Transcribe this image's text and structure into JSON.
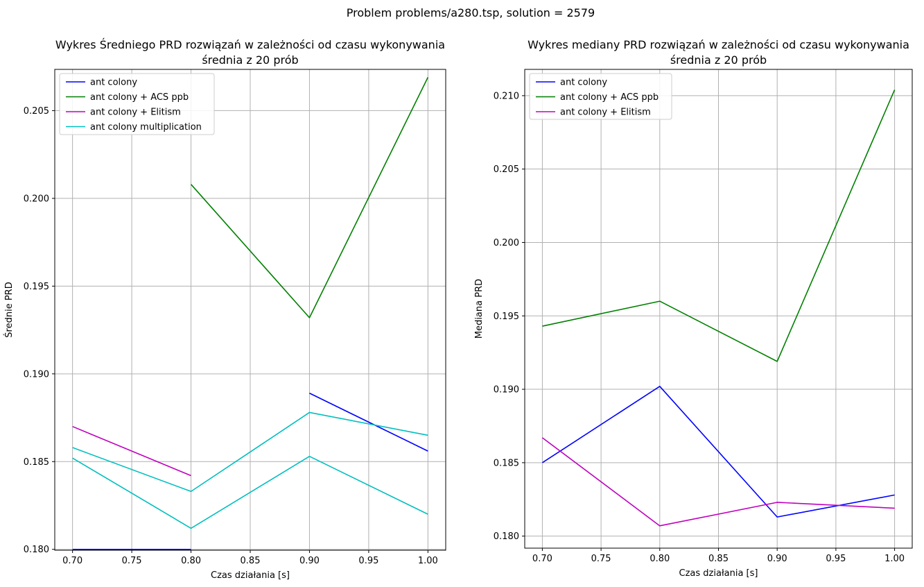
{
  "suptitle": "Problem problems/a280.tsp, solution = 2579",
  "chart_data": [
    {
      "type": "line",
      "title": [
        "Wykres Średniego PRD rozwiązań w zależności od czasu wykonywania",
        "średnia z 20 prób"
      ],
      "xlabel": "Czas działania [s]",
      "ylabel": "Średnie PRD",
      "xlim": [
        0.685,
        1.015
      ],
      "ylim": [
        0.17995,
        0.20735
      ],
      "xticks": [
        0.7,
        0.75,
        0.8,
        0.85,
        0.9,
        0.95,
        1.0
      ],
      "xtick_labels": [
        "0.70",
        "0.75",
        "0.80",
        "0.85",
        "0.90",
        "0.95",
        "1.00"
      ],
      "yticks": [
        0.18,
        0.185,
        0.19,
        0.195,
        0.2,
        0.205
      ],
      "ytick_labels": [
        "0.180",
        "0.185",
        "0.190",
        "0.195",
        "0.200",
        "0.205"
      ],
      "grid": true,
      "legend_position": "top-left",
      "series": [
        {
          "name": "ant colony",
          "color": "#0000ff",
          "segments": [
            [
              [
                0.7,
                0.18
              ],
              [
                0.8,
                0.18
              ]
            ],
            [
              [
                0.9,
                0.1889
              ],
              [
                1.0,
                0.1856
              ]
            ]
          ]
        },
        {
          "name": "ant colony + ACS ppb",
          "color": "#008000",
          "segments": [
            [
              [
                0.8,
                0.2008
              ],
              [
                0.9,
                0.1932
              ],
              [
                1.0,
                0.2069
              ]
            ]
          ]
        },
        {
          "name": "ant colony + Elitism",
          "color": "#bf00bf",
          "segments": [
            [
              [
                0.7,
                0.187
              ],
              [
                0.8,
                0.1842
              ]
            ]
          ]
        },
        {
          "name": "ant colony multiplication",
          "color": "#00bfbf",
          "segments": [
            [
              [
                0.7,
                0.1858
              ],
              [
                0.8,
                0.1833
              ],
              [
                0.9,
                0.1878
              ],
              [
                1.0,
                0.1865
              ]
            ],
            [
              [
                0.7,
                0.1852
              ],
              [
                0.8,
                0.1812
              ],
              [
                0.9,
                0.1853
              ],
              [
                1.0,
                0.182
              ]
            ]
          ]
        }
      ]
    },
    {
      "type": "line",
      "title": [
        "Wykres mediany PRD rozwiązań w zależności od czasu wykonywania",
        "średnia z 20 prób"
      ],
      "xlabel": "Czas działania [s]",
      "ylabel": "Mediana PRD",
      "xlim": [
        0.685,
        1.015
      ],
      "ylim": [
        0.17918,
        0.21179
      ],
      "xticks": [
        0.7,
        0.75,
        0.8,
        0.85,
        0.9,
        0.95,
        1.0
      ],
      "xtick_labels": [
        "0.70",
        "0.75",
        "0.80",
        "0.85",
        "0.90",
        "0.95",
        "1.00"
      ],
      "yticks": [
        0.18,
        0.185,
        0.19,
        0.195,
        0.2,
        0.205,
        0.21
      ],
      "ytick_labels": [
        "0.180",
        "0.185",
        "0.190",
        "0.195",
        "0.200",
        "0.205",
        "0.210"
      ],
      "grid": true,
      "legend_position": "top-left",
      "series": [
        {
          "name": "ant colony",
          "color": "#0000ff",
          "segments": [
            [
              [
                0.7,
                0.185
              ],
              [
                0.8,
                0.1902
              ],
              [
                0.9,
                0.1813
              ],
              [
                1.0,
                0.1828
              ]
            ]
          ]
        },
        {
          "name": "ant colony + ACS ppb",
          "color": "#008000",
          "segments": [
            [
              [
                0.7,
                0.1943
              ],
              [
                0.8,
                0.196
              ],
              [
                0.9,
                0.1919
              ],
              [
                1.0,
                0.2104
              ]
            ]
          ]
        },
        {
          "name": "ant colony + Elitism",
          "color": "#bf00bf",
          "segments": [
            [
              [
                0.7,
                0.1867
              ],
              [
                0.8,
                0.1807
              ],
              [
                0.9,
                0.1823
              ],
              [
                1.0,
                0.1819
              ]
            ]
          ]
        }
      ]
    }
  ]
}
